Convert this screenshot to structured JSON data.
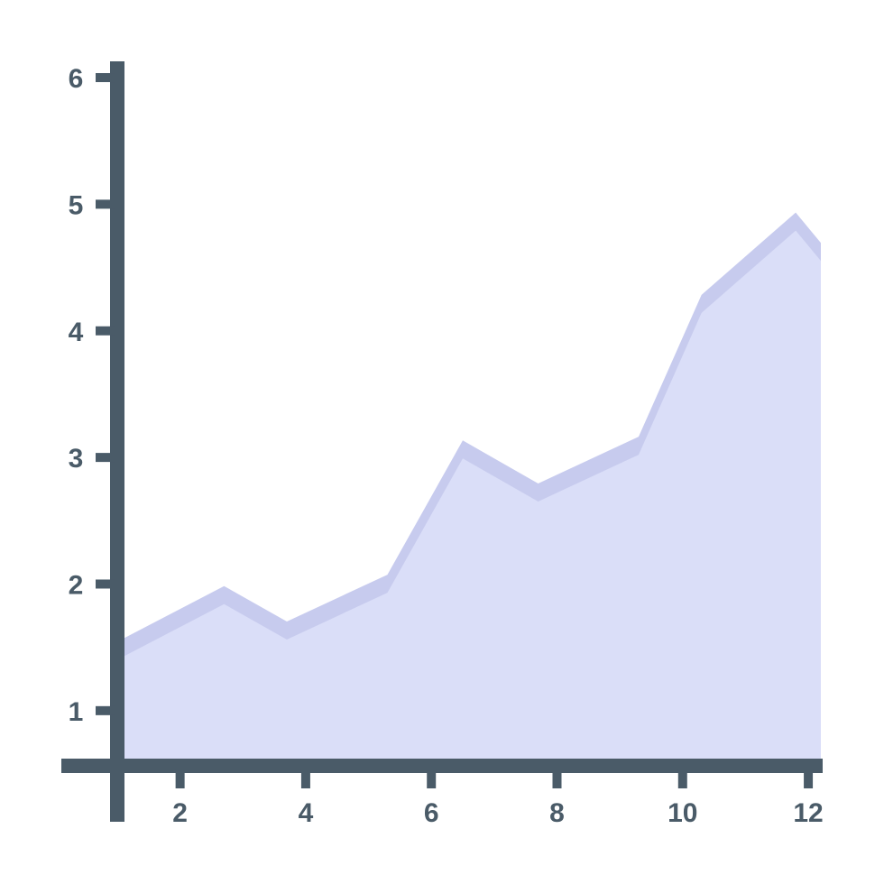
{
  "chart_data": {
    "type": "area",
    "title": "",
    "xlabel": "",
    "ylabel": "",
    "x_ticks": [
      "2",
      "4",
      "6",
      "8",
      "10",
      "12"
    ],
    "y_ticks": [
      "1",
      "2",
      "3",
      "4",
      "5",
      "6"
    ],
    "xlim": [
      1.0,
      12.2
    ],
    "ylim": [
      0.55,
      6.1
    ],
    "grid": false,
    "legend": "none",
    "series": [
      {
        "x": [
          1.0,
          2.7,
          3.7,
          5.3,
          6.5,
          7.7,
          9.3,
          10.3,
          11.8,
          12.2
        ],
        "y": [
          1.53,
          1.97,
          1.69,
          2.06,
          3.12,
          2.78,
          3.15,
          4.27,
          4.92,
          4.68
        ]
      }
    ],
    "colors": {
      "axis": "#4a5b68",
      "area_fill": "#dadef8",
      "area_edge": "#c7cbee",
      "tick_text": "#4a5b68"
    }
  }
}
